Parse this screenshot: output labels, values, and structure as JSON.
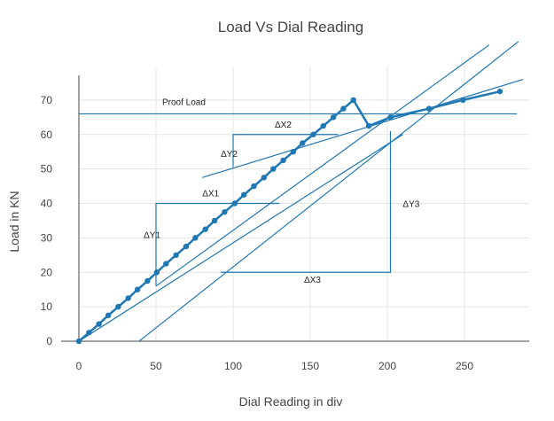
{
  "chart_data": {
    "type": "line",
    "title": "Load Vs Dial Reading",
    "xlabel": "Dial Reading in div",
    "ylabel": "Load in KN",
    "xlim": [
      -6,
      292
    ],
    "ylim": [
      -4,
      78
    ],
    "x_ticks": [
      0,
      50,
      100,
      150,
      200,
      250
    ],
    "y_ticks": [
      0,
      10,
      20,
      30,
      40,
      50,
      60,
      70
    ],
    "grid": true,
    "colors": {
      "line": "#1f77b4",
      "grid": "#e4e4e4",
      "axis": "#444444"
    },
    "series": [
      {
        "type": "line+markers",
        "x": [
          0,
          6.5,
          13,
          19,
          25.5,
          32,
          38,
          44.5,
          50.5,
          56.5,
          63,
          69.5,
          75.5,
          82,
          88,
          94.5,
          101,
          107,
          113.5,
          120,
          126,
          132.5,
          139,
          145,
          152,
          158.5,
          165,
          171.5,
          178,
          188,
          202,
          227,
          249,
          273
        ],
        "y": [
          0,
          2.5,
          5,
          7.5,
          10,
          12.5,
          15,
          17.5,
          20,
          22.5,
          25,
          27.5,
          30,
          32.5,
          35,
          37.5,
          40,
          42.5,
          45,
          47.5,
          50,
          52.5,
          55,
          57.5,
          60,
          62.5,
          65,
          67.5,
          70,
          62.5,
          65,
          67.5,
          70,
          72.5
        ]
      }
    ],
    "construction_lines": [
      {
        "x": [
          0,
          284
        ],
        "y": [
          66,
          66
        ]
      },
      {
        "x": [
          0,
          210
        ],
        "y": [
          0,
          60
        ]
      }
    ],
    "tangent_lines": [
      {
        "x": [
          80,
          288
        ],
        "y": [
          47.5,
          76
        ]
      },
      {
        "x": [
          50,
          266
        ],
        "y": [
          16,
          86
        ]
      },
      {
        "x": [
          39,
          285
        ],
        "y": [
          0,
          87
        ]
      }
    ],
    "delta_lines": [
      {
        "x": [
          100,
          100,
          168
        ],
        "y": [
          50.5,
          60,
          60
        ]
      },
      {
        "x": [
          50,
          50,
          130
        ],
        "y": [
          16,
          40,
          40
        ]
      },
      {
        "x": [
          92,
          202,
          202
        ],
        "y": [
          20,
          20,
          61
        ]
      }
    ],
    "annotations": [
      {
        "text": "Proof Load",
        "x": 54,
        "y": 68.5
      },
      {
        "text": "ΔX2",
        "x": 127,
        "y": 62
      },
      {
        "text": "ΔY2",
        "x": 92,
        "y": 53.5
      },
      {
        "text": "ΔX1",
        "x": 80,
        "y": 42
      },
      {
        "text": "ΔY1",
        "x": 42,
        "y": 30
      },
      {
        "text": "ΔY3",
        "x": 210,
        "y": 39
      },
      {
        "text": "ΔX3",
        "x": 146,
        "y": 17
      }
    ]
  }
}
